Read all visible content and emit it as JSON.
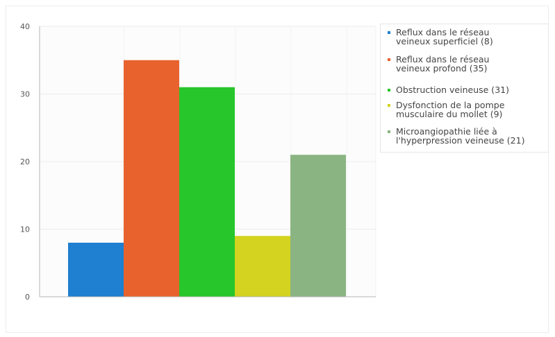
{
  "chart_data": {
    "type": "bar",
    "categories": [
      "Reflux dans le réseau veineux superficiel (8)",
      "Reflux dans le réseau veineux profond (35)",
      "Obstruction veineuse (31)",
      "Dysfonction de la pompe musculaire du mollet (9)",
      "Microangiopathie liée à l'hyperpression veineuse (21)"
    ],
    "values": [
      8,
      35,
      31,
      9,
      21
    ],
    "colors": [
      "#1f7fd0",
      "#e8622e",
      "#27c62b",
      "#d3d320",
      "#8ab582"
    ],
    "legend": [
      {
        "lines": [
          "Reflux dans le réseau",
          "veineux superficiel (8)"
        ],
        "color": "#1f7fd0"
      },
      {
        "lines": [
          "Reflux dans le réseau",
          "veineux profond (35)"
        ],
        "color": "#e8622e"
      },
      {
        "lines": [
          "Obstruction veineuse (31)"
        ],
        "color": "#27c62b"
      },
      {
        "lines": [
          "Dysfonction de la pompe",
          "musculaire du mollet (9)"
        ],
        "color": "#d3d320"
      },
      {
        "lines": [
          "Microangiopathie liée à",
          "l'hyperpression veineuse (21)"
        ],
        "color": "#8ab582"
      }
    ],
    "yticks": [
      "0",
      "10",
      "20",
      "30",
      "40"
    ],
    "ylim": [
      0,
      40
    ],
    "grid": true,
    "legend_position": "top-right",
    "title": "",
    "xlabel": "",
    "ylabel": ""
  }
}
